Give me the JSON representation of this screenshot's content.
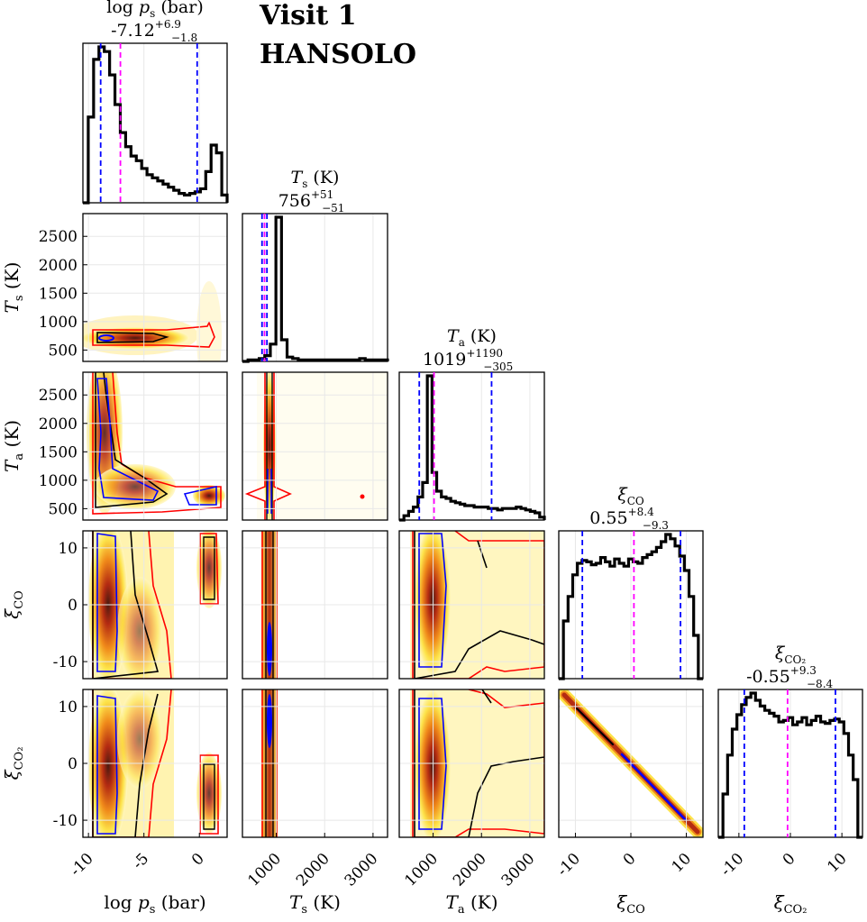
{
  "header": {
    "line1": "Visit 1",
    "line2": "HANSOLO"
  },
  "colors": {
    "hist": "#000000",
    "ci": "#0000ff",
    "median": "#ff00ff",
    "contour1": "#0000ff",
    "contour2": "#000000",
    "contour3": "#ff0000",
    "grid": "#e8e8e8"
  },
  "chart_data": {
    "type": "corner",
    "parameters": [
      {
        "name": "log p_s",
        "axis_label_sym": "log p",
        "axis_label_sub": "s",
        "axis_label_unit": "(bar)",
        "summary_median": "-7.12",
        "summary_upper": "+6.9",
        "summary_lower": "−1.8",
        "range": [
          -10.5,
          2.5
        ],
        "ticks": [
          -10,
          -5,
          0
        ],
        "tick_labels": [
          "-10",
          "-5",
          "0"
        ],
        "median": -7.12,
        "ci_low": -8.9,
        "ci_high": -0.2,
        "hist": [
          0.0,
          0.55,
          0.92,
          1.0,
          0.97,
          0.82,
          0.63,
          0.45,
          0.36,
          0.3,
          0.27,
          0.22,
          0.18,
          0.16,
          0.14,
          0.12,
          0.1,
          0.08,
          0.06,
          0.05,
          0.06,
          0.07,
          0.09,
          0.2,
          0.37,
          0.32,
          0.05
        ]
      },
      {
        "name": "T_s",
        "axis_label_sym": "T",
        "axis_label_sub": "s",
        "axis_label_unit": "(K)",
        "summary_median": "756",
        "summary_upper": "+51",
        "summary_lower": "−51",
        "range": [
          300,
          3300
        ],
        "ticks": [
          1000,
          2000,
          3000
        ],
        "tick_labels": [
          "1000",
          "2000",
          "3000"
        ],
        "yticks": [
          500,
          1000,
          1500,
          2000,
          2500
        ],
        "ytick_labels": [
          "500",
          "1000",
          "1500",
          "2000",
          "2500"
        ],
        "median": 756,
        "ci_low": 705,
        "ci_high": 807,
        "hist": [
          0.0,
          0.01,
          0.01,
          0.02,
          0.04,
          0.12,
          1.0,
          0.15,
          0.03,
          0.02,
          0.01,
          0.01,
          0.01,
          0.01,
          0.01,
          0.01,
          0.01,
          0.01,
          0.01,
          0.01,
          0.01,
          0.02,
          0.01,
          0.01,
          0.01,
          0.01
        ]
      },
      {
        "name": "T_a",
        "axis_label_sym": "T",
        "axis_label_sub": "a",
        "axis_label_unit": "(K)",
        "summary_median": "1019",
        "summary_upper": "+1190",
        "summary_lower": "−305",
        "range": [
          300,
          3300
        ],
        "ticks": [
          1000,
          2000,
          3000
        ],
        "tick_labels": [
          "1000",
          "2000",
          "3000"
        ],
        "yticks": [
          500,
          1000,
          1500,
          2000,
          2500
        ],
        "ytick_labels": [
          "500",
          "1000",
          "1500",
          "2000",
          "2500"
        ],
        "median": 1019,
        "ci_low": 714,
        "ci_high": 2209,
        "hist": [
          0.0,
          0.03,
          0.06,
          0.09,
          0.16,
          0.26,
          1.0,
          0.33,
          0.2,
          0.16,
          0.15,
          0.13,
          0.12,
          0.11,
          0.1,
          0.1,
          0.09,
          0.09,
          0.09,
          0.08,
          0.08,
          0.07,
          0.08,
          0.08,
          0.08,
          0.09,
          0.08,
          0.07,
          0.06,
          0.05,
          0.02
        ]
      },
      {
        "name": "xi_CO",
        "axis_label_sym": "ξ",
        "axis_label_sub": "CO",
        "axis_label_unit": "",
        "summary_median": "0.55",
        "summary_upper": "+8.4",
        "summary_lower": "−9.3",
        "range": [
          -13,
          13
        ],
        "ticks": [
          -10,
          0,
          10
        ],
        "tick_labels": [
          "-10",
          "0",
          "10"
        ],
        "yticks": [
          -10,
          0,
          10
        ],
        "ytick_labels": [
          "-10",
          "0",
          "10"
        ],
        "median": 0.55,
        "ci_low": -8.75,
        "ci_high": 8.95,
        "hist": [
          0.0,
          0.4,
          0.57,
          0.72,
          0.8,
          0.82,
          0.81,
          0.79,
          0.8,
          0.84,
          0.81,
          0.78,
          0.83,
          0.8,
          0.78,
          0.83,
          0.81,
          0.8,
          0.84,
          0.86,
          0.88,
          0.91,
          0.95,
          1.0,
          0.97,
          0.92,
          0.85,
          0.75,
          0.57,
          0.3,
          0.0
        ]
      },
      {
        "name": "xi_CO2",
        "axis_label_sym": "ξ",
        "axis_label_sub": "CO₂",
        "axis_label_unit": "",
        "summary_median": "-0.55",
        "summary_upper": "+9.3",
        "summary_lower": "−8.4",
        "range": [
          -14,
          14
        ],
        "ticks": [
          -10,
          0,
          10
        ],
        "tick_labels": [
          "-10",
          "0",
          "10"
        ],
        "yticks": [
          -10,
          0,
          10
        ],
        "ytick_labels": [
          "-10",
          "0",
          "10"
        ],
        "median": -0.55,
        "ci_low": -8.95,
        "ci_high": 8.75,
        "hist": [
          0.0,
          0.3,
          0.57,
          0.75,
          0.85,
          0.92,
          0.97,
          1.0,
          0.95,
          0.91,
          0.88,
          0.86,
          0.84,
          0.8,
          0.81,
          0.83,
          0.78,
          0.8,
          0.83,
          0.78,
          0.81,
          0.84,
          0.8,
          0.79,
          0.81,
          0.82,
          0.8,
          0.72,
          0.57,
          0.4,
          0.0
        ]
      }
    ],
    "contour_levels": [
      "1 sigma",
      "2 sigma",
      "3 sigma"
    ]
  }
}
